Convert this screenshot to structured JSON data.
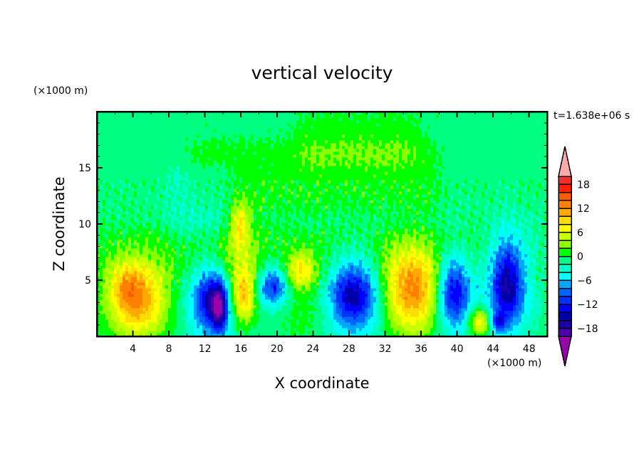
{
  "chart_data": {
    "type": "heatmap",
    "subtype": "filled-contour",
    "title": "vertical velocity",
    "xlabel": "X coordinate",
    "ylabel": "Z coordinate",
    "x_unit": "(×1000 m)",
    "y_unit": "(×1000 m)",
    "time_label": "t=1.638e+06 s",
    "xlim": [
      0,
      50
    ],
    "ylim": [
      0,
      20
    ],
    "x_ticks": [
      4,
      8,
      12,
      16,
      20,
      24,
      28,
      32,
      36,
      40,
      44,
      48
    ],
    "x_tick_labels": [
      "4",
      "8",
      "12",
      "16",
      "20",
      "24",
      "28",
      "32",
      "36",
      "40",
      "44",
      "48"
    ],
    "y_ticks": [
      5,
      10,
      15
    ],
    "y_tick_labels": [
      "5",
      "10",
      "15"
    ],
    "levels": [
      -20,
      -18,
      -16,
      -14,
      -12,
      -10,
      -8,
      -6,
      -4,
      -2,
      0,
      2,
      4,
      6,
      8,
      10,
      12,
      14,
      16,
      18,
      20
    ],
    "colorbar_ticks": [
      18,
      12,
      6,
      0,
      -6,
      -12,
      -18
    ],
    "colorbar_tick_labels": [
      "18",
      "12",
      "6",
      "0",
      "−6",
      "−12",
      "−18"
    ],
    "colors": [
      "#4a00a8",
      "#1e00a8",
      "#0000a8",
      "#0000ff",
      "#0032ff",
      "#0064ff",
      "#00a5ff",
      "#00ffff",
      "#00ffc8",
      "#00ff80",
      "#00ff00",
      "#8cff00",
      "#c8ff00",
      "#ffff00",
      "#ffdc00",
      "#ffaa00",
      "#ff7f00",
      "#ff5a00",
      "#ff2200",
      "#ff2a2a"
    ],
    "over_color": "#ffaaaa",
    "under_color": "#9900aa",
    "background_value": -1,
    "regions": [
      {
        "x": [
          10,
          38
        ],
        "z": [
          11,
          17.5
        ],
        "value": 1
      },
      {
        "x": [
          22,
          36
        ],
        "z": [
          15,
          20
        ],
        "value": 1
      },
      {
        "x": [
          0,
          50
        ],
        "z": [
          5,
          9.5
        ],
        "value": 1
      },
      {
        "x": [
          8,
          15
        ],
        "z": [
          9,
          15
        ],
        "value": -3.5
      },
      {
        "x": [
          44,
          50
        ],
        "z": [
          6,
          10
        ],
        "value": -3
      }
    ],
    "features": [
      {
        "x": 4.5,
        "z": 3.2,
        "amp": 13,
        "sx": 2.3,
        "sz": 2.3
      },
      {
        "x": 3.2,
        "z": 4.6,
        "amp": 4,
        "sx": 1.2,
        "sz": 1.2
      },
      {
        "x": 13.0,
        "z": 3.0,
        "amp": -6,
        "sx": 2.2,
        "sz": 2.6
      },
      {
        "x": 12.6,
        "z": 3.3,
        "amp": -8,
        "sx": 1.2,
        "sz": 1.8
      },
      {
        "x": 13.6,
        "z": 2.5,
        "amp": -12,
        "sx": 0.6,
        "sz": 1.4
      },
      {
        "x": 16.3,
        "z": 3.5,
        "amp": 12,
        "sx": 1.0,
        "sz": 1.7
      },
      {
        "x": 16.0,
        "z": 7.0,
        "amp": 4,
        "sx": 1.6,
        "sz": 2.5
      },
      {
        "x": 15.9,
        "z": 10.0,
        "amp": 7,
        "sx": 0.7,
        "sz": 1.3
      },
      {
        "x": 19.6,
        "z": 4.5,
        "amp": -9,
        "sx": 1.1,
        "sz": 1.1
      },
      {
        "x": 19.5,
        "z": 4.5,
        "amp": -3,
        "sx": 2.2,
        "sz": 2.2
      },
      {
        "x": 22.6,
        "z": 5.8,
        "amp": 7,
        "sx": 1.1,
        "sz": 1.1
      },
      {
        "x": 23.0,
        "z": 3.5,
        "amp": 3,
        "sx": 2.5,
        "sz": 3.0
      },
      {
        "x": 28.5,
        "z": 3.8,
        "amp": -11,
        "sx": 1.8,
        "sz": 2.0
      },
      {
        "x": 28.5,
        "z": 3.5,
        "amp": -4,
        "sx": 3.0,
        "sz": 3.2
      },
      {
        "x": 35.0,
        "z": 4.0,
        "amp": 14,
        "sx": 2.3,
        "sz": 2.6
      },
      {
        "x": 39.6,
        "z": 4.0,
        "amp": -11,
        "sx": 1.2,
        "sz": 2.2
      },
      {
        "x": 39.6,
        "z": 4.0,
        "amp": -3,
        "sx": 2.0,
        "sz": 3.0
      },
      {
        "x": 42.6,
        "z": 1.3,
        "amp": 10,
        "sx": 0.9,
        "sz": 0.9
      },
      {
        "x": 45.6,
        "z": 4.6,
        "amp": -12,
        "sx": 1.2,
        "sz": 2.5
      },
      {
        "x": 45.6,
        "z": 4.6,
        "amp": -4,
        "sx": 2.3,
        "sz": 3.4
      },
      {
        "x": 44.5,
        "z": 1.3,
        "amp": -8,
        "sx": 0.6,
        "sz": 0.6
      }
    ]
  }
}
